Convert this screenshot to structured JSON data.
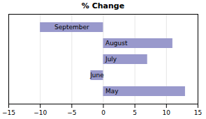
{
  "chart_data": {
    "type": "bar",
    "title": "% Change",
    "orientation": "horizontal",
    "categories": [
      "May",
      "June",
      "July",
      "August",
      "September"
    ],
    "values": [
      13,
      -2,
      7,
      11,
      -10
    ],
    "color": "#9999cc",
    "xlim": [
      -15,
      15
    ],
    "xticks": [
      -15,
      -10,
      -5,
      0,
      5,
      10,
      15
    ],
    "grid": true,
    "tick_labels": "x"
  }
}
